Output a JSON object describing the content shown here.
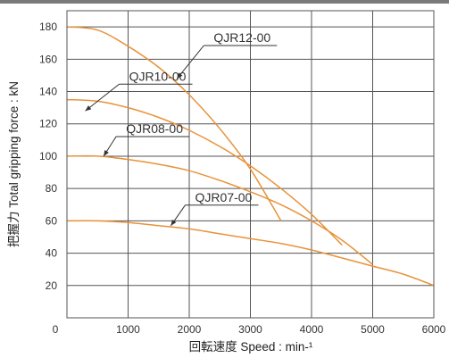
{
  "chart_data": {
    "type": "line",
    "xlabel": "回転速度 Speed : min-¹",
    "ylabel": "把握力 Total gripping force : kN",
    "xlim": [
      0,
      6000
    ],
    "ylim": [
      0,
      190
    ],
    "x_ticks": [
      "0",
      "1000",
      "2000",
      "3000",
      "4000",
      "5000",
      "6000"
    ],
    "y_ticks": [
      "20",
      "40",
      "60",
      "80",
      "100",
      "120",
      "140",
      "160",
      "180"
    ],
    "grid": true,
    "line_color": "#e8923a",
    "series": [
      {
        "name": "QJR12-00",
        "points": [
          [
            0,
            180
          ],
          [
            500,
            178
          ],
          [
            1000,
            168
          ],
          [
            1500,
            155
          ],
          [
            2000,
            138
          ],
          [
            2500,
            117
          ],
          [
            3000,
            92
          ],
          [
            3500,
            60
          ]
        ],
        "label_anchor": [
          1800,
          148
        ]
      },
      {
        "name": "QJR10-00",
        "points": [
          [
            0,
            135
          ],
          [
            500,
            134
          ],
          [
            1000,
            130
          ],
          [
            1500,
            124
          ],
          [
            2000,
            116
          ],
          [
            2500,
            106
          ],
          [
            3000,
            94
          ],
          [
            3500,
            80
          ],
          [
            4000,
            64
          ],
          [
            4500,
            45
          ]
        ],
        "label_anchor": [
          300,
          128
        ]
      },
      {
        "name": "QJR08-00",
        "points": [
          [
            0,
            100
          ],
          [
            500,
            100
          ],
          [
            1000,
            98
          ],
          [
            1500,
            95
          ],
          [
            2000,
            91
          ],
          [
            2500,
            85
          ],
          [
            3000,
            78
          ],
          [
            3500,
            70
          ],
          [
            4000,
            60
          ],
          [
            4500,
            48
          ],
          [
            5000,
            33
          ]
        ],
        "label_anchor": [
          600,
          100
        ]
      },
      {
        "name": "QJR07-00",
        "points": [
          [
            0,
            60
          ],
          [
            500,
            60
          ],
          [
            1000,
            59
          ],
          [
            1500,
            57
          ],
          [
            2000,
            55
          ],
          [
            2500,
            52
          ],
          [
            3000,
            49
          ],
          [
            3500,
            46
          ],
          [
            4000,
            42
          ],
          [
            4500,
            37
          ],
          [
            5000,
            32
          ],
          [
            5500,
            27
          ],
          [
            6000,
            20
          ]
        ],
        "label_anchor": [
          1700,
          57
        ]
      }
    ]
  }
}
